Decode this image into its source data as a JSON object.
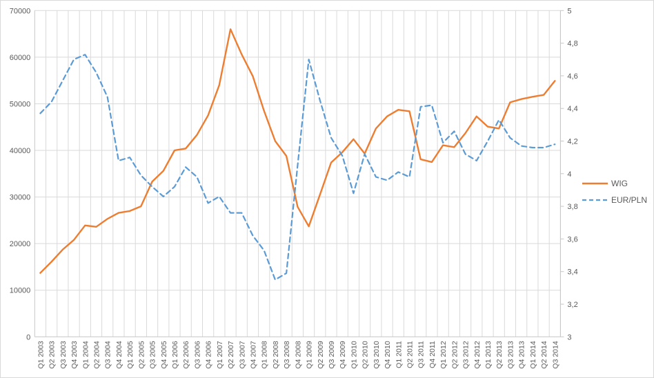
{
  "chart_data": {
    "type": "line",
    "categories": [
      "Q1 2003",
      "Q2 2003",
      "Q3 2003",
      "Q4 2003",
      "Q1 2004",
      "Q2 2004",
      "Q3 2004",
      "Q4 2004",
      "Q1 2005",
      "Q2 2005",
      "Q3 2005",
      "Q4 2005",
      "Q1 2006",
      "Q2 2006",
      "Q3 2006",
      "Q4 2006",
      "Q1 2007",
      "Q2 2007",
      "Q3 2007",
      "Q4 2007",
      "Q1 2008",
      "Q2 2008",
      "Q3 2008",
      "Q4 2008",
      "Q1 2009",
      "Q2 2009",
      "Q3 2009",
      "Q4 2009",
      "Q1 2010",
      "Q2 2010",
      "Q3 2010",
      "Q4 2010",
      "Q1 2011",
      "Q2 2011",
      "Q3 2011",
      "Q4 2011",
      "Q1 2012",
      "Q2 2012",
      "Q3 2012",
      "Q4 2012",
      "Q1 2013",
      "Q2 2013",
      "Q3 2013",
      "Q4 2013",
      "Q1 2014",
      "Q2 2014",
      "Q3 2014"
    ],
    "series": [
      {
        "name": "WIG",
        "axis": "left",
        "color": "#ED7D31",
        "style": "solid",
        "values": [
          13700,
          16100,
          18700,
          20800,
          23900,
          23600,
          25300,
          26600,
          27000,
          28000,
          33300,
          35600,
          40000,
          40400,
          43300,
          47500,
          54000,
          66000,
          60600,
          55900,
          48500,
          42000,
          38800,
          27900,
          23700,
          30500,
          37400,
          39600,
          42400,
          39300,
          44700,
          47300,
          48700,
          48400,
          38100,
          37500,
          41100,
          40700,
          43700,
          47300,
          45100,
          44700,
          50300,
          51000,
          51500,
          51900,
          54900
        ]
      },
      {
        "name": "EUR/PLN",
        "axis": "right",
        "color": "#5B9BD5",
        "style": "dashed",
        "values": [
          4.37,
          4.44,
          4.57,
          4.7,
          4.73,
          4.62,
          4.47,
          4.08,
          4.1,
          3.99,
          3.92,
          3.86,
          3.92,
          4.04,
          3.98,
          3.82,
          3.86,
          3.76,
          3.76,
          3.62,
          3.53,
          3.35,
          3.39,
          4.05,
          4.7,
          4.45,
          4.22,
          4.11,
          3.88,
          4.12,
          3.98,
          3.96,
          4.01,
          3.98,
          4.41,
          4.42,
          4.19,
          4.26,
          4.12,
          4.08,
          4.2,
          4.33,
          4.22,
          4.17,
          4.16,
          4.16,
          4.18
        ]
      }
    ],
    "left_axis": {
      "min": 0,
      "max": 70000,
      "step": 10000,
      "tick_labels": [
        "0",
        "10000",
        "20000",
        "30000",
        "40000",
        "50000",
        "60000",
        "70000"
      ]
    },
    "right_axis": {
      "min": 3,
      "max": 5,
      "step": 0.2,
      "tick_labels": [
        "3",
        "3,2",
        "3,4",
        "3,6",
        "3,8",
        "4",
        "4,2",
        "4,4",
        "4,6",
        "4,8",
        "5"
      ]
    },
    "grid": true,
    "legend_position": "right"
  },
  "legend": {
    "items": [
      {
        "label": "WIG"
      },
      {
        "label": "EUR/PLN"
      }
    ]
  },
  "colors": {
    "gridline": "#D9D9D9",
    "axis_line": "#C6C6C6",
    "label_text": "#595959",
    "background": "#FFFFFF",
    "wig_orange": "#ED7D31",
    "eurpln_blue": "#5B9BD5"
  }
}
